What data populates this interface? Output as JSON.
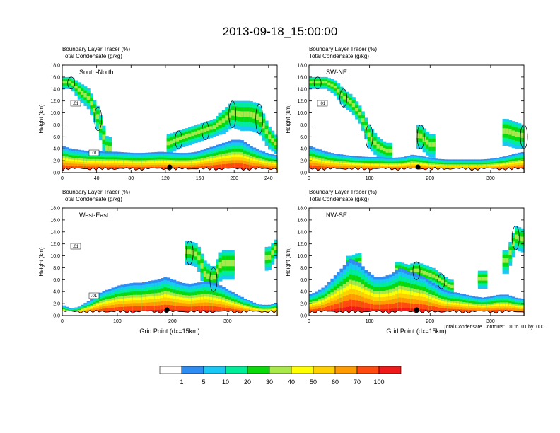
{
  "figure": {
    "title": "2013-09-18_15:00:00",
    "footnote": "Total Condensate Contours: .01 to .01 by .000"
  },
  "palette": [
    "#ffffff",
    "#2f8cf3",
    "#19c8f5",
    "#00ee9a",
    "#0ad90a",
    "#a8e84a",
    "#ffff00",
    "#ffd000",
    "#ff9a00",
    "#ff4a10",
    "#f01a1a"
  ],
  "colorbar": {
    "labels": [
      "1",
      "5",
      "10",
      "20",
      "30",
      "40",
      "50",
      "60",
      "70",
      "100"
    ]
  },
  "chart_data": [
    {
      "type": "heatmap",
      "panel_label": "South-North",
      "title_line1": "Boundary Layer Tracer   (%)",
      "title_line2": "Total Condensate   (g/kg)",
      "ylabel": "Height (km)",
      "xlabel": "",
      "xlim": [
        0,
        250
      ],
      "ylim": [
        0,
        18
      ],
      "xticks": [
        "0",
        "40",
        "80",
        "120",
        "160",
        "200",
        "240"
      ],
      "xtick_values": [
        0,
        40,
        80,
        120,
        160,
        200,
        240
      ],
      "yticks": [
        "0.0",
        "2.0",
        "4.0",
        "6.0",
        "8.0",
        "10.0",
        "12.0",
        "14.0",
        "16.0",
        "18.0"
      ],
      "marker_x": 125,
      "contour_labels": [
        ".01",
        ".01"
      ],
      "bl_top_km": [
        4.5,
        4,
        3.8,
        3.6,
        3.6,
        3.5,
        3.5,
        3.4,
        3.3,
        3.3,
        3.4,
        3.5,
        3.4,
        3.3,
        3.3,
        3.5,
        4,
        4.5,
        5,
        5.5,
        5.5,
        4.5,
        3.8,
        3.2,
        2.9
      ],
      "cloud_km": [
        [
          16,
          2
        ],
        [
          16,
          2
        ],
        [
          15,
          3
        ],
        [
          14,
          3.5
        ],
        [
          11,
          4
        ],
        [
          6,
          4.5
        ],
        [
          0,
          0
        ],
        [
          0,
          0
        ],
        [
          0,
          0
        ],
        [
          0,
          0
        ],
        [
          0,
          0
        ],
        [
          0,
          0
        ],
        [
          6.5,
          3.5
        ],
        [
          7,
          3
        ],
        [
          7.5,
          3
        ],
        [
          8,
          3
        ],
        [
          8.5,
          3
        ],
        [
          9,
          3
        ],
        [
          10.5,
          4
        ],
        [
          12,
          4.5
        ],
        [
          12,
          5
        ],
        [
          12,
          5
        ],
        [
          11.5,
          5
        ],
        [
          8,
          4
        ],
        [
          6,
          3
        ]
      ]
    },
    {
      "type": "heatmap",
      "panel_label": "SW-NE",
      "title_line1": "Boundary Layer Tracer   (%)",
      "title_line2": "Total Condensate   (g/kg)",
      "ylabel": "Height (km)",
      "xlabel": "",
      "xlim": [
        0,
        355
      ],
      "ylim": [
        0,
        18
      ],
      "xticks": [
        "0",
        "100",
        "200",
        "300"
      ],
      "xtick_values": [
        0,
        100,
        200,
        300
      ],
      "yticks": [
        "0.0",
        "2.0",
        "4.0",
        "6.0",
        "8.0",
        "10.0",
        "12.0",
        "14.0",
        "16.0",
        "18.0"
      ],
      "marker_x": 180,
      "contour_labels": [
        ".01"
      ],
      "bl_top_km": [
        4.5,
        4,
        3.5,
        3.2,
        3,
        2.8,
        2.7,
        2.6,
        2.6,
        2.5,
        2.5,
        2.6,
        3,
        2.8,
        2.5,
        2.3,
        2.2,
        2.2,
        2.2,
        2.2,
        2.2,
        2.3,
        2.5,
        2.8,
        3.2,
        3.5
      ],
      "cloud_km": [
        [
          16,
          2
        ],
        [
          16,
          2
        ],
        [
          16,
          2
        ],
        [
          15.5,
          2.5
        ],
        [
          14,
          3
        ],
        [
          13,
          3
        ],
        [
          11,
          3
        ],
        [
          8,
          4
        ],
        [
          6,
          3.5
        ],
        [
          5,
          3
        ],
        [
          0,
          0
        ],
        [
          0,
          0
        ],
        [
          0,
          0
        ],
        [
          8,
          4
        ],
        [
          6.5,
          4
        ],
        [
          0,
          0
        ],
        [
          0,
          0
        ],
        [
          0,
          0
        ],
        [
          0,
          0
        ],
        [
          0,
          0
        ],
        [
          0,
          0
        ],
        [
          0,
          0
        ],
        [
          0,
          0
        ],
        [
          9,
          4.5
        ],
        [
          8.5,
          4.5
        ],
        [
          8,
          4
        ]
      ]
    },
    {
      "type": "heatmap",
      "panel_label": "West-East",
      "title_line1": "Boundary Layer Tracer   (%)",
      "title_line2": "Total Condensate   (g/kg)",
      "ylabel": "Height (km)",
      "xlabel": "Grid Point (dx=15km)",
      "xlim": [
        0,
        390
      ],
      "ylim": [
        0,
        18
      ],
      "xticks": [
        "0",
        "100",
        "200",
        "300"
      ],
      "xtick_values": [
        0,
        100,
        200,
        300
      ],
      "yticks": [
        "0.0",
        "2.0",
        "4.0",
        "6.0",
        "8.0",
        "10.0",
        "12.0",
        "14.0",
        "16.0",
        "18.0"
      ],
      "marker_x": 190,
      "contour_labels": [
        ".01",
        ".01"
      ],
      "bl_top_km": [
        1.8,
        1.2,
        1.4,
        2.2,
        3,
        4,
        4.5,
        5,
        5.3,
        5.5,
        5.5,
        5.8,
        6,
        6.5,
        6,
        5.5,
        5.3,
        5.5,
        5.8,
        5.5,
        5,
        4.2,
        3.5,
        2.8,
        2.2,
        1.8,
        1.8,
        2.2
      ],
      "cloud_km": [
        [
          0,
          0
        ],
        [
          0,
          0
        ],
        [
          0,
          0
        ],
        [
          0,
          0
        ],
        [
          0,
          0
        ],
        [
          0,
          0
        ],
        [
          0,
          0
        ],
        [
          0,
          0
        ],
        [
          0,
          0
        ],
        [
          0,
          0
        ],
        [
          0,
          0
        ],
        [
          0,
          0
        ],
        [
          0,
          0
        ],
        [
          0,
          0
        ],
        [
          0,
          0
        ],
        [
          0,
          0
        ],
        [
          12.5,
          4
        ],
        [
          12,
          4
        ],
        [
          9,
          5
        ],
        [
          8,
          4
        ],
        [
          11,
          5
        ],
        [
          11,
          5
        ],
        [
          0,
          0
        ],
        [
          0,
          0
        ],
        [
          0,
          0
        ],
        [
          0,
          0
        ],
        [
          11.5,
          4
        ],
        [
          13,
          3
        ]
      ]
    },
    {
      "type": "heatmap",
      "panel_label": "NW-SE",
      "title_line1": "Boundary Layer Tracer   (%)",
      "title_line2": "Total Condensate   (g/kg)",
      "ylabel": "Height (km)",
      "xlabel": "Grid Point (dx=15km)",
      "xlim": [
        0,
        355
      ],
      "ylim": [
        0,
        18
      ],
      "xticks": [
        "0",
        "100",
        "200",
        "300"
      ],
      "xtick_values": [
        0,
        100,
        200,
        300
      ],
      "yticks": [
        "0.0",
        "2.0",
        "4.0",
        "6.0",
        "8.0",
        "10.0",
        "12.0",
        "14.0",
        "16.0",
        "18.0"
      ],
      "marker_x": 178,
      "contour_labels": [],
      "bl_top_km": [
        3.5,
        4,
        5,
        6.5,
        8,
        9.5,
        9,
        7.5,
        6.5,
        6.5,
        7,
        8,
        7.5,
        7,
        6.5,
        5.5,
        4.5,
        4,
        3.8,
        3.5,
        3.2,
        3,
        3.2,
        3.5,
        3.5,
        3,
        2.8
      ],
      "cloud_km": [
        [
          0,
          0
        ],
        [
          0,
          0
        ],
        [
          0,
          0
        ],
        [
          0,
          0
        ],
        [
          0,
          0
        ],
        [
          10,
          4
        ],
        [
          10.5,
          4
        ],
        [
          0,
          0
        ],
        [
          0,
          0
        ],
        [
          0,
          0
        ],
        [
          0,
          0
        ],
        [
          9,
          3
        ],
        [
          8.5,
          3
        ],
        [
          9,
          3
        ],
        [
          8.5,
          3
        ],
        [
          8,
          3
        ],
        [
          7,
          2.5
        ],
        [
          6,
          2.5
        ],
        [
          0,
          0
        ],
        [
          0,
          0
        ],
        [
          0,
          0
        ],
        [
          7.5,
          3
        ],
        [
          0,
          0
        ],
        [
          0,
          0
        ],
        [
          11,
          4
        ],
        [
          15,
          4
        ],
        [
          14.5,
          4
        ]
      ]
    }
  ]
}
